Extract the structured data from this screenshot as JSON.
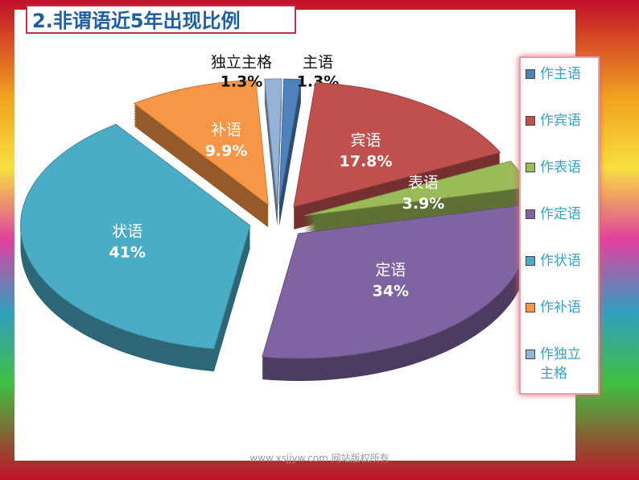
{
  "chart_data": {
    "type": "pie",
    "title": "2.非谓语近5年出现比例",
    "categories": [
      "主语",
      "宾语",
      "表语",
      "定语",
      "状语",
      "补语",
      "独立主格"
    ],
    "values": [
      1.3,
      17.8,
      3.9,
      34,
      41,
      9.9,
      1.3
    ],
    "value_labels": [
      "1.3%",
      "17.8%",
      "3.9%",
      "34%",
      "41%",
      "9.9%",
      "1.3%"
    ],
    "colors": [
      "#4f81bd",
      "#c0504d",
      "#9bbb59",
      "#8064a2",
      "#4bacc6",
      "#f79646",
      "#95b3d7"
    ],
    "legend": {
      "position": "right",
      "labels": [
        "作主语",
        "作宾语",
        "作表语",
        "作定语",
        "作状语",
        "作补语",
        "作独立主格"
      ]
    },
    "footer": "www.xsjjyw.com 网站版权所有"
  }
}
